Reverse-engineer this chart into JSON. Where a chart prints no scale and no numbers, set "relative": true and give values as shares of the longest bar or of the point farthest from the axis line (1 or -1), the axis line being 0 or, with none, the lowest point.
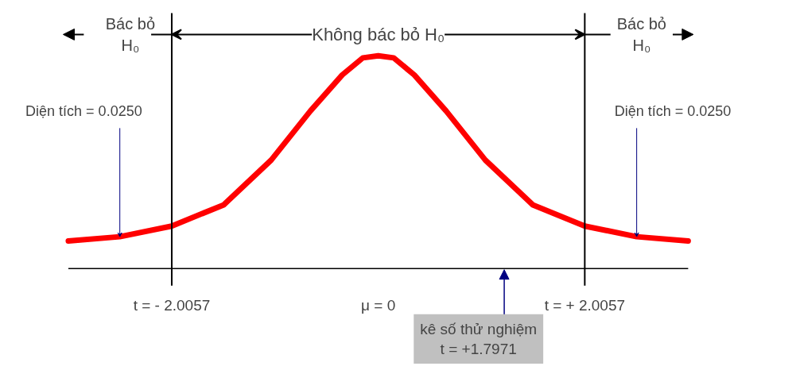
{
  "chart_data": {
    "type": "line",
    "relative": true,
    "x": [
      -3.01,
      -2.51,
      -2.006,
      -1.5,
      -1.04,
      -0.66,
      -0.35,
      -0.15,
      0,
      0.15,
      0.35,
      0.66,
      1.04,
      1.5,
      2.006,
      2.51,
      3.01
    ],
    "series": [
      {
        "color": "#ff0000",
        "values": [
          0.13,
          0.15,
          0.2,
          0.3,
          0.51,
          0.74,
          0.91,
          0.99,
          1,
          0.99,
          0.91,
          0.74,
          0.51,
          0.3,
          0.2,
          0.15,
          0.13
        ]
      }
    ],
    "xlim": [
      -3.01,
      3.01
    ],
    "xticks": [
      {
        "value": -2.0057,
        "label": "t = - 2.0057"
      },
      {
        "value": 0,
        "label": "μ = 0"
      },
      {
        "value": 2.0057,
        "label": "t = + 2.0057"
      }
    ],
    "ref_lines": [
      {
        "axis": "x",
        "value": -2.0057,
        "color": "#000000"
      },
      {
        "axis": "x",
        "value": 2.0057,
        "color": "#000000"
      }
    ],
    "annotations": [
      "Bác bỏ\nH₀",
      "Không bác bỏ H₀",
      "Bác bỏ\nH₀",
      {
        "text": "Diện tích = 0.0250",
        "x": -2.51,
        "y": 0.15
      },
      {
        "text": "Diện tích = 0.0250",
        "x": 2.51,
        "y": 0.15
      },
      "kê số thử nghiệm\nt = +1.7971"
    ],
    "grid": false,
    "marker": "none",
    "line_style": "solid"
  }
}
